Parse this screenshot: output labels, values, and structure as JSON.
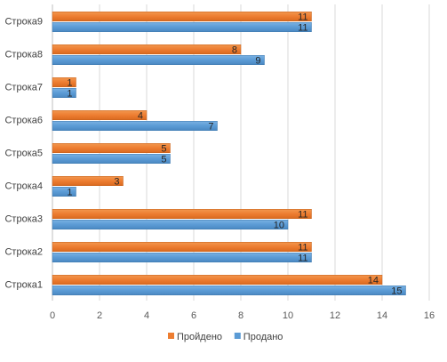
{
  "chart_data": {
    "type": "bar",
    "orientation": "horizontal",
    "title": "",
    "xlabel": "",
    "ylabel": "",
    "categories": [
      "Строка1",
      "Строка2",
      "Строка3",
      "Строка4",
      "Строка5",
      "Строка6",
      "Строка7",
      "Строка8",
      "Строка9"
    ],
    "series": [
      {
        "name": "Продано",
        "color": "#5B9BD5",
        "values": [
          15,
          11,
          10,
          1,
          5,
          7,
          1,
          9,
          11
        ]
      },
      {
        "name": "Пройдено",
        "color": "#ED7D31",
        "values": [
          14,
          11,
          11,
          3,
          5,
          4,
          1,
          8,
          11
        ]
      }
    ],
    "xlim": [
      0,
      16
    ],
    "xticks": [
      0,
      2,
      4,
      6,
      8,
      10,
      12,
      14,
      16
    ],
    "grid": true,
    "legend_position": "bottom",
    "legend_order": [
      "Пройдено",
      "Продано"
    ],
    "data_labels": true
  }
}
